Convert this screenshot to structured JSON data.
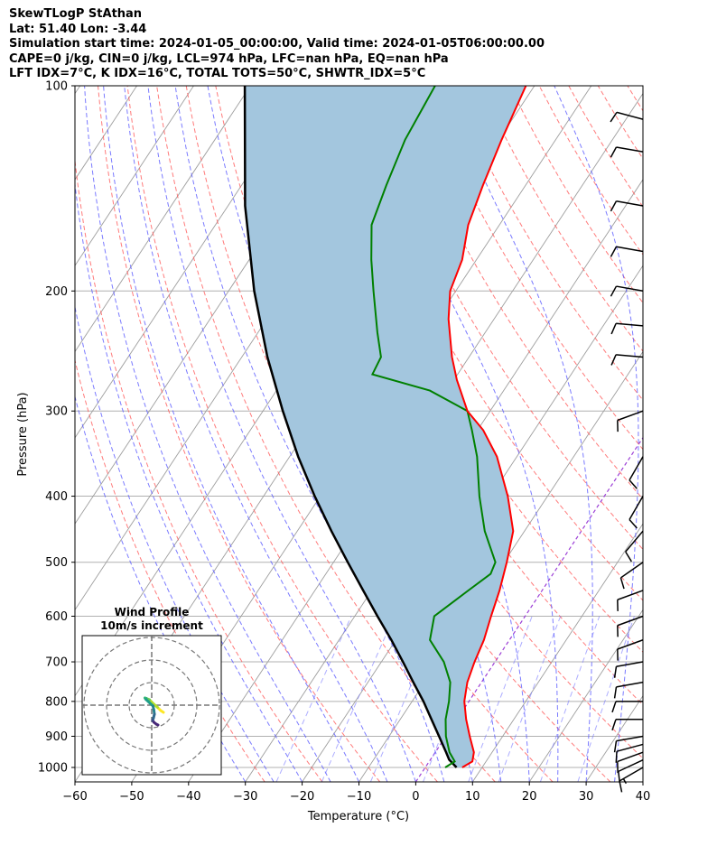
{
  "title_lines": [
    "SkewTLogP StAthan",
    "Lat: 51.40   Lon: -3.44",
    "Simulation start time: 2024-01-05_00:00:00, Valid time: 2024-01-05T06:00:00.00",
    "CAPE=0 j/kg, CIN=0 j/kg, LCL=974 hPa, LFC=nan hPa, EQ=nan hPa",
    "LFT IDX=7°C, K IDX=16°C, TOTAL TOTS=50°C, SHWTR_IDX=5°C"
  ],
  "colors": {
    "temperature": "#ff0000",
    "dewpoint": "#008000",
    "parcel": "#000000",
    "cape_fill": "#a3c6de",
    "dry_adiabats": "#ff5a5a",
    "moist_adiabats": "#5a5aff",
    "isotherms": "#9e9e9e",
    "mixing_ratio": "#7777ff",
    "zero_isotherm": "#9c3fd6",
    "wind_barbs": "#000000"
  },
  "chart_data": [
    {
      "type": "line",
      "subtype": "skew-T log-p diagram",
      "xlabel": "Temperature (°C)",
      "ylabel": "Pressure (hPa)",
      "xlim": [
        -60,
        40
      ],
      "ylim": [
        1050,
        100
      ],
      "y_scale": "log",
      "xticks": [
        -60,
        -50,
        -40,
        -30,
        -20,
        -10,
        0,
        10,
        20,
        30,
        40
      ],
      "yticks": [
        1000,
        900,
        800,
        700,
        600,
        500,
        400,
        300,
        200,
        100
      ],
      "grid": true,
      "series": [
        {
          "name": "temperature",
          "points": [
            [
              1000,
              6.5
            ],
            [
              980,
              7.6
            ],
            [
              950,
              6.8
            ],
            [
              900,
              4.2
            ],
            [
              850,
              1.6
            ],
            [
              800,
              -0.8
            ],
            [
              750,
              -2.5
            ],
            [
              700,
              -3.6
            ],
            [
              650,
              -4.5
            ],
            [
              600,
              -6.0
            ],
            [
              550,
              -7.5
            ],
            [
              500,
              -9.5
            ],
            [
              450,
              -12.0
            ],
            [
              400,
              -17.0
            ],
            [
              350,
              -23.5
            ],
            [
              320,
              -29.0
            ],
            [
              300,
              -34.0
            ],
            [
              270,
              -39.5
            ],
            [
              250,
              -43.0
            ],
            [
              220,
              -48.0
            ],
            [
              200,
              -51.0
            ],
            [
              180,
              -52.5
            ],
            [
              160,
              -55.5
            ],
            [
              140,
              -57.5
            ],
            [
              120,
              -59.5
            ],
            [
              100,
              -61.5
            ]
          ]
        },
        {
          "name": "dewpoint",
          "points": [
            [
              1000,
              3.5
            ],
            [
              980,
              4.5
            ],
            [
              950,
              2.5
            ],
            [
              900,
              0.0
            ],
            [
              850,
              -2.0
            ],
            [
              800,
              -3.5
            ],
            [
              750,
              -5.5
            ],
            [
              700,
              -9.0
            ],
            [
              650,
              -14.0
            ],
            [
              600,
              -16.0
            ],
            [
              550,
              -13.0
            ],
            [
              520,
              -11.0
            ],
            [
              500,
              -11.5
            ],
            [
              450,
              -17.0
            ],
            [
              400,
              -22.0
            ],
            [
              350,
              -27.0
            ],
            [
              320,
              -31.0
            ],
            [
              300,
              -34.0
            ],
            [
              280,
              -43.0
            ],
            [
              265,
              -55.0
            ],
            [
              250,
              -55.5
            ],
            [
              230,
              -59.0
            ],
            [
              200,
              -64.5
            ],
            [
              180,
              -68.5
            ],
            [
              160,
              -72.5
            ],
            [
              140,
              -74.5
            ],
            [
              120,
              -76.5
            ],
            [
              100,
              -77.5
            ]
          ]
        },
        {
          "name": "parcel",
          "points": [
            [
              1000,
              5.5
            ],
            [
              974,
              3.3
            ],
            [
              950,
              1.9
            ],
            [
              900,
              -1.2
            ],
            [
              850,
              -4.5
            ],
            [
              800,
              -8.0
            ],
            [
              750,
              -12.0
            ],
            [
              700,
              -16.2
            ],
            [
              650,
              -20.8
            ],
            [
              600,
              -26.0
            ],
            [
              550,
              -31.5
            ],
            [
              500,
              -37.5
            ],
            [
              450,
              -44.0
            ],
            [
              400,
              -51.0
            ],
            [
              350,
              -58.5
            ],
            [
              300,
              -66.5
            ],
            [
              250,
              -75.5
            ],
            [
              200,
              -85.5
            ],
            [
              150,
              -97.0
            ],
            [
              100,
              -111.0
            ]
          ]
        }
      ],
      "wind_barbs": [
        {
          "p": 1000,
          "speed_kt": 5,
          "dir_deg": 240
        },
        {
          "p": 975,
          "speed_kt": 10,
          "dir_deg": 245
        },
        {
          "p": 950,
          "speed_kt": 10,
          "dir_deg": 250
        },
        {
          "p": 925,
          "speed_kt": 10,
          "dir_deg": 255
        },
        {
          "p": 900,
          "speed_kt": 10,
          "dir_deg": 260
        },
        {
          "p": 850,
          "speed_kt": 10,
          "dir_deg": 270
        },
        {
          "p": 800,
          "speed_kt": 10,
          "dir_deg": 270
        },
        {
          "p": 750,
          "speed_kt": 10,
          "dir_deg": 260
        },
        {
          "p": 700,
          "speed_kt": 10,
          "dir_deg": 260
        },
        {
          "p": 650,
          "speed_kt": 10,
          "dir_deg": 250
        },
        {
          "p": 600,
          "speed_kt": 10,
          "dir_deg": 250
        },
        {
          "p": 550,
          "speed_kt": 10,
          "dir_deg": 250
        },
        {
          "p": 500,
          "speed_kt": 10,
          "dir_deg": 235
        },
        {
          "p": 450,
          "speed_kt": 10,
          "dir_deg": 220
        },
        {
          "p": 400,
          "speed_kt": 10,
          "dir_deg": 210
        },
        {
          "p": 350,
          "speed_kt": 10,
          "dir_deg": 210
        },
        {
          "p": 300,
          "speed_kt": 10,
          "dir_deg": 250
        },
        {
          "p": 250,
          "speed_kt": 10,
          "dir_deg": 275
        },
        {
          "p": 225,
          "speed_kt": 10,
          "dir_deg": 275
        },
        {
          "p": 200,
          "speed_kt": 10,
          "dir_deg": 280
        },
        {
          "p": 175,
          "speed_kt": 10,
          "dir_deg": 280
        },
        {
          "p": 150,
          "speed_kt": 10,
          "dir_deg": 280
        },
        {
          "p": 125,
          "speed_kt": 10,
          "dir_deg": 280
        },
        {
          "p": 112,
          "speed_kt": 10,
          "dir_deg": 285
        }
      ]
    },
    {
      "type": "scatter",
      "subtype": "hodograph",
      "title": "Wind Profile\n10m/s increment",
      "rings_ms": [
        10,
        20,
        30
      ],
      "points_uv": [
        [
          2.6,
          -1.6
        ],
        [
          2.0,
          -1.2
        ],
        [
          1.3,
          -0.5
        ],
        [
          0.5,
          0.2
        ],
        [
          -0.5,
          1.2
        ],
        [
          -1.2,
          1.5
        ],
        [
          -1.5,
          1.6
        ],
        [
          -1.3,
          1.3
        ],
        [
          0.3,
          -0.2
        ],
        [
          0.5,
          -1.2
        ],
        [
          0.6,
          -2.0
        ],
        [
          0.4,
          -2.8
        ],
        [
          0.2,
          -3.4
        ],
        [
          0.5,
          -3.8
        ],
        [
          1.0,
          -4.2
        ],
        [
          1.4,
          -4.4
        ]
      ]
    }
  ]
}
